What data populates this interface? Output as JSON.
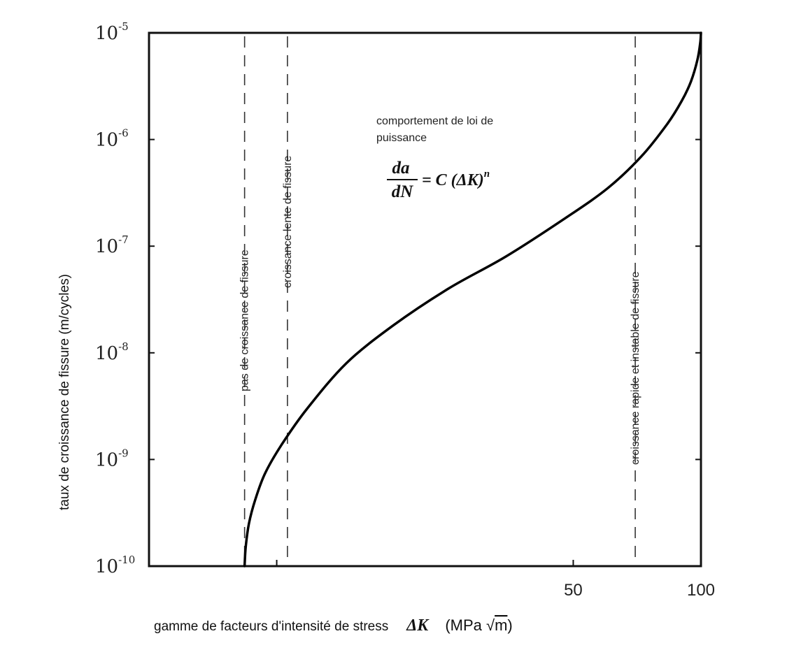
{
  "chart_data": {
    "type": "line",
    "xlabel": "gamme de facteurs d'intensité de stress",
    "xlabel_symbol": "ΔK",
    "xlabel_unit_open": "(MPa ",
    "xlabel_unit_sqrt": "√",
    "xlabel_unit_m": "m",
    "xlabel_unit_close": ")",
    "ylabel": "taux de croissance de fissure  (m/cycles)",
    "x_scale": "log",
    "y_scale": "log",
    "xlim": [
      5,
      100
    ],
    "ylim": [
      1e-10,
      1e-05
    ],
    "x_ticks": [
      {
        "value": 10,
        "label": ""
      },
      {
        "value": 50,
        "label": "50"
      },
      {
        "value": 100,
        "label": "100"
      }
    ],
    "y_ticks": [
      {
        "value": 1e-10,
        "base": "10",
        "exp": "-10"
      },
      {
        "value": 1e-09,
        "base": "10",
        "exp": "-9"
      },
      {
        "value": 1e-08,
        "base": "10",
        "exp": "-8"
      },
      {
        "value": 1e-07,
        "base": "10",
        "exp": "-7"
      },
      {
        "value": 1e-06,
        "base": "10",
        "exp": "-6"
      },
      {
        "value": 1e-05,
        "base": "10",
        "exp": "-5"
      }
    ],
    "series": [
      {
        "x": [
          8.4,
          8.45,
          8.6,
          8.9,
          9.4,
          10.3,
          11.8,
          14.6,
          18.8,
          25.4,
          34.7,
          47.6,
          60.3,
          72.5,
          83.3,
          90.1,
          94.7,
          98.0,
          99.6,
          100
        ],
        "y": [
          1e-10,
          1.5e-10,
          2.5e-10,
          4.2e-10,
          7.5e-10,
          1.4e-09,
          3e-09,
          8e-09,
          1.8e-08,
          4e-08,
          8e-08,
          1.8e-07,
          3.5e-07,
          7e-07,
          1.4e-06,
          2.3e-06,
          3.5e-06,
          5.5e-06,
          8e-06,
          1e-05
        ]
      }
    ],
    "regions": [
      {
        "x": 8.4,
        "label": "pas de croissance de fissure"
      },
      {
        "x": 10.6,
        "label": "croissance  lente de fissure"
      },
      {
        "x": 70,
        "label": "croissance rapide et instable de fissure"
      }
    ],
    "annotation": {
      "line1": "comportement de loi de",
      "line2": "puissance",
      "eq_num": "da",
      "eq_den": "dN",
      "eq_rhs": "= C (ΔK)",
      "eq_exp": "n"
    },
    "grid": false
  }
}
